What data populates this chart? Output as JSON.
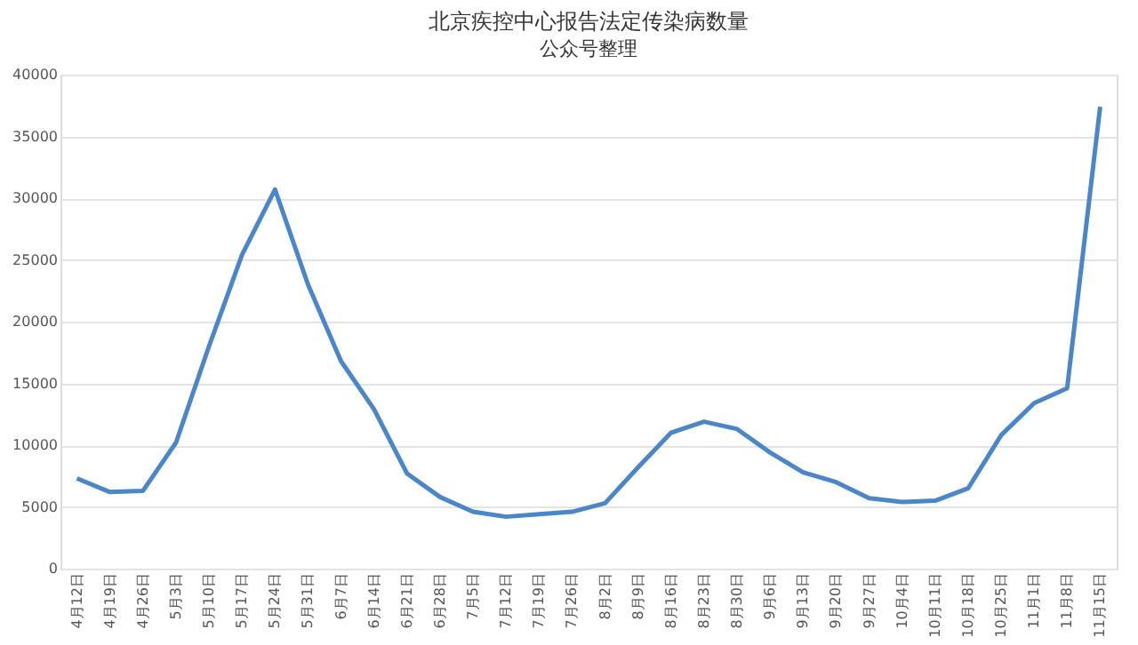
{
  "chart_data": {
    "type": "line",
    "title": "北京疾控中心报告法定传染病数量",
    "subtitle": "公众号整理",
    "categories": [
      "4月12日",
      "4月19日",
      "4月26日",
      "5月3日",
      "5月10日",
      "5月17日",
      "5月24日",
      "5月31日",
      "6月7日",
      "6月14日",
      "6月21日",
      "6月28日",
      "7月5日",
      "7月12日",
      "7月19日",
      "7月26日",
      "8月2日",
      "8月9日",
      "8月16日",
      "8月23日",
      "8月30日",
      "9月6日",
      "9月13日",
      "9月20日",
      "9月27日",
      "10月4日",
      "10月11日",
      "10月18日",
      "10月25日",
      "11月1日",
      "11月8日",
      "11月15日"
    ],
    "series": [
      {
        "color": "#4a86c8",
        "values": [
          7300,
          6200,
          6300,
          10200,
          18000,
          25400,
          30700,
          23000,
          16800,
          12900,
          7700,
          5800,
          4600,
          4200,
          4400,
          4600,
          5300,
          8200,
          11000,
          11900,
          11300,
          9400,
          7800,
          7000,
          5700,
          5400,
          5500,
          6500,
          10800,
          13400,
          14600,
          37400
        ]
      }
    ],
    "ylim": [
      0,
      40000
    ],
    "yticks": [
      0,
      5000,
      10000,
      15000,
      20000,
      25000,
      30000,
      35000,
      40000
    ],
    "grid": "y",
    "marker": "none",
    "line_style": "solid"
  }
}
